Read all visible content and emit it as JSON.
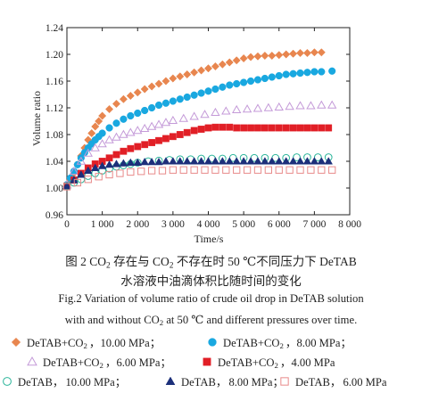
{
  "chart_data": {
    "type": "scatter",
    "xlabel": "Time/s",
    "ylabel": "Volume ratio",
    "xlim": [
      0,
      8000
    ],
    "ylim": [
      0.96,
      1.24
    ],
    "xticks": [
      0,
      1000,
      2000,
      3000,
      4000,
      5000,
      6000,
      7000,
      8000
    ],
    "xtick_labels": [
      "0",
      "1 000",
      "2 000",
      "3 000",
      "4 000",
      "5 000",
      "6 000",
      "7 000",
      "8 000"
    ],
    "yticks": [
      0.96,
      1.0,
      1.04,
      1.08,
      1.12,
      1.16,
      1.2,
      1.24
    ],
    "ytick_labels": [
      "0.96",
      "1.00",
      "1.04",
      "1.08",
      "1.12",
      "1.16",
      "1.20",
      "1.24"
    ],
    "grid": false,
    "legend_position": "below",
    "series": [
      {
        "name_base": "DeTAB+CO",
        "name_sub": "2",
        "name_rest": "，10.00 MPa；",
        "marker": "diamond",
        "color": "#e8864f",
        "filled": true,
        "x": [
          0,
          100,
          200,
          300,
          400,
          500,
          600,
          700,
          800,
          900,
          1000,
          1200,
          1400,
          1600,
          1800,
          2000,
          2200,
          2400,
          2600,
          2800,
          3000,
          3200,
          3400,
          3600,
          3800,
          4000,
          4200,
          4400,
          4600,
          4800,
          5000,
          5200,
          5400,
          5600,
          5800,
          6000,
          6200,
          6400,
          6600,
          6800,
          7000,
          7200
        ],
        "y": [
          1.005,
          1.012,
          1.022,
          1.035,
          1.048,
          1.06,
          1.072,
          1.082,
          1.092,
          1.1,
          1.108,
          1.118,
          1.126,
          1.133,
          1.138,
          1.143,
          1.148,
          1.152,
          1.156,
          1.16,
          1.164,
          1.167,
          1.17,
          1.173,
          1.176,
          1.179,
          1.182,
          1.185,
          1.188,
          1.191,
          1.194,
          1.196,
          1.197,
          1.198,
          1.198,
          1.199,
          1.2,
          1.201,
          1.202,
          1.202,
          1.203,
          1.203
        ]
      },
      {
        "name_base": "DeTAB+CO",
        "name_sub": "2",
        "name_rest": "，8.00 MPa；",
        "marker": "circle",
        "color": "#19a8e0",
        "filled": true,
        "x": [
          0,
          100,
          200,
          300,
          400,
          500,
          600,
          700,
          800,
          900,
          1000,
          1200,
          1400,
          1600,
          1800,
          2000,
          2200,
          2400,
          2600,
          2800,
          3000,
          3200,
          3400,
          3600,
          3800,
          4000,
          4200,
          4400,
          4600,
          4800,
          5000,
          5200,
          5400,
          5600,
          5800,
          6000,
          6200,
          6400,
          6600,
          6800,
          7000,
          7200,
          7500
        ],
        "y": [
          1.005,
          1.015,
          1.025,
          1.035,
          1.045,
          1.053,
          1.06,
          1.066,
          1.072,
          1.077,
          1.082,
          1.09,
          1.097,
          1.103,
          1.108,
          1.112,
          1.116,
          1.12,
          1.124,
          1.127,
          1.13,
          1.133,
          1.136,
          1.139,
          1.142,
          1.145,
          1.148,
          1.151,
          1.154,
          1.156,
          1.158,
          1.16,
          1.162,
          1.164,
          1.166,
          1.168,
          1.17,
          1.171,
          1.172,
          1.173,
          1.174,
          1.174,
          1.175
        ]
      },
      {
        "name_base": "DeTAB+CO",
        "name_sub": "2",
        "name_rest": "，6.00 MPa；",
        "marker": "triangle",
        "color": "#c49ad8",
        "filled": false,
        "x": [
          0,
          200,
          400,
          600,
          800,
          1000,
          1200,
          1400,
          1600,
          1800,
          2000,
          2200,
          2400,
          2600,
          2800,
          3000,
          3300,
          3600,
          3900,
          4200,
          4500,
          4800,
          5100,
          5400,
          5700,
          6000,
          6300,
          6600,
          6900,
          7200,
          7500
        ],
        "y": [
          1.005,
          1.025,
          1.04,
          1.052,
          1.06,
          1.066,
          1.072,
          1.076,
          1.08,
          1.083,
          1.086,
          1.089,
          1.092,
          1.095,
          1.098,
          1.101,
          1.104,
          1.107,
          1.11,
          1.113,
          1.115,
          1.117,
          1.118,
          1.119,
          1.12,
          1.121,
          1.122,
          1.123,
          1.123,
          1.124,
          1.124
        ]
      },
      {
        "name_base": "DeTAB+CO",
        "name_sub": "2",
        "name_rest": "，4.00 MPa",
        "marker": "square",
        "color": "#e11f26",
        "filled": true,
        "x": [
          0,
          200,
          400,
          600,
          800,
          1000,
          1200,
          1400,
          1600,
          1800,
          2000,
          2200,
          2400,
          2600,
          2800,
          3000,
          3200,
          3400,
          3600,
          3800,
          4000,
          4200,
          4400,
          4600,
          4800,
          5000,
          5200,
          5400,
          5600,
          5800,
          6000,
          6200,
          6400,
          6600,
          6800,
          7000,
          7200,
          7400
        ],
        "y": [
          1.003,
          1.012,
          1.022,
          1.03,
          1.036,
          1.04,
          1.045,
          1.05,
          1.055,
          1.059,
          1.062,
          1.065,
          1.068,
          1.071,
          1.074,
          1.077,
          1.08,
          1.083,
          1.086,
          1.088,
          1.09,
          1.091,
          1.091,
          1.091,
          1.09,
          1.09,
          1.09,
          1.09,
          1.09,
          1.09,
          1.09,
          1.09,
          1.09,
          1.09,
          1.09,
          1.09,
          1.09,
          1.09
        ]
      },
      {
        "name_base": "DeTAB，",
        "name_sub": "",
        "name_rest": "10.00 MPa；",
        "marker": "circle",
        "color": "#2bb59a",
        "filled": false,
        "x": [
          0,
          200,
          400,
          600,
          800,
          1000,
          1200,
          1400,
          1600,
          1800,
          2000,
          2300,
          2600,
          2900,
          3200,
          3500,
          3800,
          4100,
          4400,
          4700,
          5000,
          5300,
          5600,
          5900,
          6200,
          6500,
          6800,
          7100,
          7400
        ],
        "y": [
          1.003,
          1.008,
          1.013,
          1.018,
          1.022,
          1.026,
          1.029,
          1.032,
          1.034,
          1.036,
          1.038,
          1.04,
          1.041,
          1.042,
          1.043,
          1.043,
          1.044,
          1.044,
          1.044,
          1.045,
          1.045,
          1.045,
          1.045,
          1.045,
          1.045,
          1.046,
          1.046,
          1.046,
          1.046
        ]
      },
      {
        "name_base": "DeTAB，",
        "name_sub": "",
        "name_rest": "8.00 MPa；",
        "marker": "triangle",
        "color": "#1c2f7a",
        "filled": true,
        "x": [
          0,
          200,
          400,
          600,
          800,
          1000,
          1200,
          1400,
          1600,
          1800,
          2000,
          2200,
          2400,
          2600,
          2800,
          3000,
          3200,
          3400,
          3600,
          3800,
          4000,
          4200,
          4400,
          4600,
          4800,
          5000,
          5200,
          5400,
          5600,
          5800,
          6000,
          6200,
          6400,
          6600,
          6800,
          7000,
          7200,
          7400
        ],
        "y": [
          1.003,
          1.012,
          1.02,
          1.026,
          1.03,
          1.033,
          1.035,
          1.036,
          1.037,
          1.038,
          1.038,
          1.039,
          1.039,
          1.039,
          1.04,
          1.04,
          1.04,
          1.04,
          1.04,
          1.04,
          1.04,
          1.04,
          1.04,
          1.04,
          1.04,
          1.04,
          1.04,
          1.04,
          1.04,
          1.04,
          1.04,
          1.04,
          1.04,
          1.04,
          1.04,
          1.04,
          1.04,
          1.04
        ]
      },
      {
        "name_base": "DeTAB，",
        "name_sub": "",
        "name_rest": "6.00 MPa",
        "marker": "square",
        "color": "#e88a8a",
        "filled": false,
        "x": [
          0,
          300,
          600,
          900,
          1200,
          1500,
          1800,
          2100,
          2400,
          2700,
          3000,
          3300,
          3600,
          3900,
          4200,
          4500,
          4800,
          5100,
          5400,
          5700,
          6000,
          6300,
          6600,
          6900,
          7200,
          7500
        ],
        "y": [
          1.002,
          1.008,
          1.013,
          1.017,
          1.02,
          1.022,
          1.024,
          1.025,
          1.026,
          1.026,
          1.027,
          1.027,
          1.027,
          1.027,
          1.027,
          1.027,
          1.027,
          1.027,
          1.027,
          1.027,
          1.027,
          1.027,
          1.027,
          1.027,
          1.027,
          1.027
        ]
      }
    ]
  },
  "caption": {
    "zh_line1_a": "图 2   CO",
    "zh_line1_sub1": "2",
    "zh_line1_b": " 存在与 CO",
    "zh_line1_sub2": "2",
    "zh_line1_c": " 不存在时 50 ℃不同压力下 DeTAB",
    "zh_line2": "水溶液中油滴体积比随时间的变化",
    "en_line1": "Fig.2    Variation of volume ratio of crude oil drop in DeTAB solution",
    "en_line2_a": "with and without CO",
    "en_line2_sub": "2",
    "en_line2_b": " at 50 ℃ and different pressures over time."
  }
}
